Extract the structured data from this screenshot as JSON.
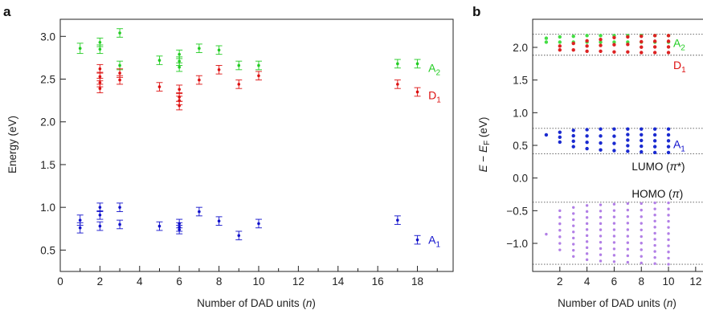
{
  "figure": {
    "panel_a_letter": "a",
    "panel_b_letter": "b"
  },
  "chart_data": [
    {
      "panel": "a",
      "type": "scatter",
      "xlabel_prefix": "Number of DAD units (",
      "xlabel_var": "n",
      "xlabel_suffix": ")",
      "ylabel": "Energy (eV)",
      "xlim": [
        0,
        19.8
      ],
      "ylim": [
        0.25,
        3.2
      ],
      "xticks": [
        "0",
        "2",
        "4",
        "6",
        "8",
        "10",
        "12",
        "14",
        "16",
        "18"
      ],
      "xtick_values": [
        0,
        2,
        4,
        6,
        8,
        10,
        12,
        14,
        16,
        18
      ],
      "yticks": [
        "0.5",
        "1.0",
        "1.5",
        "2.0",
        "2.5",
        "3.0"
      ],
      "ytick_values": [
        0.5,
        1.0,
        1.5,
        2.0,
        2.5,
        3.0
      ],
      "minor_xtick_values": [
        1,
        3,
        5,
        7,
        9,
        11,
        13,
        15,
        17,
        19
      ],
      "series": [
        {
          "name": "A2",
          "name_main": "A",
          "name_sub": "2",
          "color": "#22cc22",
          "label_x": 18.55,
          "label_y": 2.63,
          "points": [
            {
              "x": 1,
              "y": 2.86,
              "err": 0.06
            },
            {
              "x": 2,
              "y": 2.93,
              "err": 0.05
            },
            {
              "x": 2,
              "y": 2.85,
              "err": 0.05
            },
            {
              "x": 3,
              "y": 3.04,
              "err": 0.05
            },
            {
              "x": 3,
              "y": 2.66,
              "err": 0.05
            },
            {
              "x": 5,
              "y": 2.72,
              "err": 0.05
            },
            {
              "x": 6,
              "y": 2.79,
              "err": 0.05
            },
            {
              "x": 6,
              "y": 2.71,
              "err": 0.05
            },
            {
              "x": 6,
              "y": 2.64,
              "err": 0.05
            },
            {
              "x": 7,
              "y": 2.86,
              "err": 0.05
            },
            {
              "x": 8,
              "y": 2.84,
              "err": 0.05
            },
            {
              "x": 9,
              "y": 2.66,
              "err": 0.05
            },
            {
              "x": 10,
              "y": 2.66,
              "err": 0.05
            },
            {
              "x": 17,
              "y": 2.68,
              "err": 0.05
            },
            {
              "x": 18,
              "y": 2.68,
              "err": 0.05
            }
          ]
        },
        {
          "name": "D1",
          "name_main": "D",
          "name_sub": "1",
          "color": "#dd1111",
          "label_x": 18.55,
          "label_y": 2.31,
          "points": [
            {
              "x": 2,
              "y": 2.62,
              "err": 0.05
            },
            {
              "x": 2,
              "y": 2.53,
              "err": 0.05
            },
            {
              "x": 2,
              "y": 2.46,
              "err": 0.05
            },
            {
              "x": 2,
              "y": 2.39,
              "err": 0.05
            },
            {
              "x": 3,
              "y": 2.57,
              "err": 0.05
            },
            {
              "x": 3,
              "y": 2.49,
              "err": 0.05
            },
            {
              "x": 5,
              "y": 2.41,
              "err": 0.05
            },
            {
              "x": 6,
              "y": 2.38,
              "err": 0.05
            },
            {
              "x": 6,
              "y": 2.29,
              "err": 0.05
            },
            {
              "x": 6,
              "y": 2.25,
              "err": 0.05
            },
            {
              "x": 6,
              "y": 2.19,
              "err": 0.05
            },
            {
              "x": 7,
              "y": 2.49,
              "err": 0.05
            },
            {
              "x": 8,
              "y": 2.61,
              "err": 0.05
            },
            {
              "x": 9,
              "y": 2.44,
              "err": 0.05
            },
            {
              "x": 10,
              "y": 2.54,
              "err": 0.05
            },
            {
              "x": 17,
              "y": 2.44,
              "err": 0.05
            },
            {
              "x": 18,
              "y": 2.35,
              "err": 0.05
            }
          ]
        },
        {
          "name": "A1",
          "name_main": "A",
          "name_sub": "1",
          "color": "#1111cc",
          "label_x": 18.55,
          "label_y": 0.62,
          "points": [
            {
              "x": 1,
              "y": 0.85,
              "err": 0.06
            },
            {
              "x": 1,
              "y": 0.76,
              "err": 0.06
            },
            {
              "x": 2,
              "y": 1.0,
              "err": 0.05
            },
            {
              "x": 2,
              "y": 0.91,
              "err": 0.05
            },
            {
              "x": 2,
              "y": 0.78,
              "err": 0.05
            },
            {
              "x": 3,
              "y": 1.0,
              "err": 0.05
            },
            {
              "x": 3,
              "y": 0.8,
              "err": 0.05
            },
            {
              "x": 5,
              "y": 0.78,
              "err": 0.05
            },
            {
              "x": 6,
              "y": 0.81,
              "err": 0.05
            },
            {
              "x": 6,
              "y": 0.77,
              "err": 0.05
            },
            {
              "x": 6,
              "y": 0.74,
              "err": 0.05
            },
            {
              "x": 7,
              "y": 0.95,
              "err": 0.05
            },
            {
              "x": 8,
              "y": 0.84,
              "err": 0.05
            },
            {
              "x": 9,
              "y": 0.67,
              "err": 0.05
            },
            {
              "x": 10,
              "y": 0.81,
              "err": 0.05
            },
            {
              "x": 17,
              "y": 0.85,
              "err": 0.05
            },
            {
              "x": 18,
              "y": 0.62,
              "err": 0.05
            }
          ]
        }
      ]
    },
    {
      "panel": "b",
      "type": "scatter",
      "xlabel_prefix": "Number of DAD units (",
      "xlabel_var": "n",
      "xlabel_suffix": ")",
      "ylabel_E": "E",
      "ylabel_minus": " − ",
      "ylabel_EF": "E",
      "ylabel_F": "F",
      "ylabel_unit": " (eV)",
      "xlim": [
        0,
        12.6
      ],
      "ylim": [
        -1.43,
        2.43
      ],
      "xticks": [
        "2",
        "4",
        "6",
        "8",
        "10",
        "12"
      ],
      "xtick_values": [
        2,
        4,
        6,
        8,
        10,
        12
      ],
      "yticks": [
        "−1.0",
        "−0.5",
        "0.0",
        "0.5",
        "1.0",
        "1.5",
        "2.0"
      ],
      "ytick_values": [
        -1.0,
        -0.5,
        0.0,
        0.5,
        1.0,
        1.5,
        2.0
      ],
      "reference_lines": [
        2.2,
        1.88,
        0.76,
        0.37,
        -0.37,
        -1.32
      ],
      "band_labels": [
        {
          "name": "A2",
          "main": "A",
          "sub": "2",
          "color": "#22cc22",
          "x": 10.35,
          "y": 2.07
        },
        {
          "name": "D1",
          "main": "D",
          "sub": "1",
          "color": "#dd1111",
          "x": 10.35,
          "y": 1.73
        },
        {
          "name": "A1",
          "main": "A",
          "sub": "1",
          "color": "#1111cc",
          "x": 10.35,
          "y": 0.52
        }
      ],
      "level_labels": [
        {
          "text_main": "LUMO (",
          "sym": "π",
          "text_end": "*)",
          "x": 7.3,
          "y": 0.18
        },
        {
          "text_main": "HOMO (",
          "sym": "π",
          "text_end": ")",
          "x": 7.3,
          "y": -0.24
        }
      ],
      "bands": [
        {
          "name": "A2",
          "color": "#44dd44",
          "ranges": [
            [
              2.08,
              2.14
            ],
            [
              2.08,
              2.16
            ],
            [
              2.08,
              2.17
            ],
            [
              2.08,
              2.18
            ],
            [
              2.08,
              2.18
            ],
            [
              2.08,
              2.18
            ],
            [
              2.08,
              2.18
            ],
            [
              2.08,
              2.18
            ],
            [
              2.08,
              2.18
            ],
            [
              2.08,
              2.18
            ]
          ]
        },
        {
          "name": "D1",
          "color": "#dd2222",
          "ranges": [
            [
              null,
              null
            ],
            [
              1.96,
              2.02
            ],
            [
              1.96,
              2.06
            ],
            [
              1.94,
              2.1
            ],
            [
              1.94,
              2.12
            ],
            [
              1.93,
              2.15
            ],
            [
              1.93,
              2.16
            ],
            [
              1.92,
              2.17
            ],
            [
              1.92,
              2.18
            ],
            [
              1.92,
              2.18
            ]
          ]
        },
        {
          "name": "A1",
          "color": "#1a2ad0",
          "ranges": [
            [
              0.66,
              0.66
            ],
            [
              0.55,
              0.7
            ],
            [
              0.48,
              0.73
            ],
            [
              0.45,
              0.74
            ],
            [
              0.43,
              0.75
            ],
            [
              0.42,
              0.75
            ],
            [
              0.41,
              0.75
            ],
            [
              0.4,
              0.75
            ],
            [
              0.39,
              0.75
            ],
            [
              0.39,
              0.75
            ]
          ]
        },
        {
          "name": "HOMO",
          "color": "#b27fe6",
          "ranges": [
            [
              -0.86,
              -0.86
            ],
            [
              -1.1,
              -0.5
            ],
            [
              -1.2,
              -0.45
            ],
            [
              -1.25,
              -0.42
            ],
            [
              -1.27,
              -0.41
            ],
            [
              -1.28,
              -0.4
            ],
            [
              -1.29,
              -0.39
            ],
            [
              -1.3,
              -0.39
            ],
            [
              -1.31,
              -0.38
            ],
            [
              -1.32,
              -0.38
            ]
          ]
        }
      ]
    }
  ]
}
